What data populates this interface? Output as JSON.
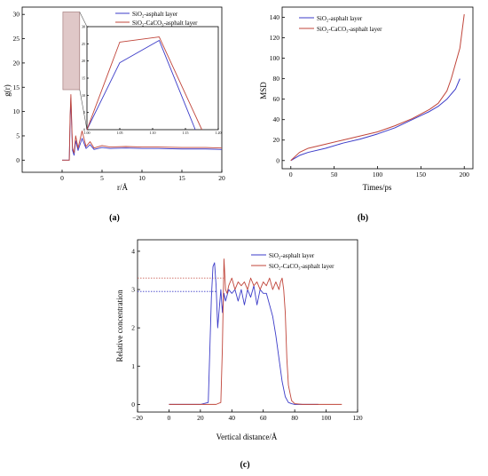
{
  "chart_data": [
    {
      "panel_label": "(a)",
      "type": "line",
      "ylabel": "g(r)",
      "xlabel": "r/Å",
      "xlim": [
        -5,
        20
      ],
      "ylim": [
        -2.5,
        31.5
      ],
      "xticks": [
        "0",
        "5",
        "10",
        "15",
        "20"
      ],
      "yticks": [
        "0",
        "5",
        "10",
        "15",
        "20",
        "25",
        "30"
      ],
      "colors": {
        "series1": "#3b3bc8",
        "series2": "#c0453a"
      },
      "series": [
        {
          "name": "SiO₂-asphalt layer",
          "x": [
            0,
            0.9,
            1.0,
            1.1,
            1.2,
            1.3,
            1.5,
            1.7,
            2.0,
            2.5,
            3,
            3.5,
            4,
            5,
            6,
            8,
            10,
            12,
            15,
            18,
            20
          ],
          "y": [
            0,
            0,
            8.0,
            12.8,
            7.0,
            2.0,
            1.0,
            4.0,
            2.0,
            4.5,
            2.4,
            3.2,
            2.2,
            2.6,
            2.4,
            2.5,
            2.4,
            2.4,
            2.3,
            2.3,
            2.2
          ]
        },
        {
          "name": "SiO₂-CaCO₃-asphalt layer",
          "x": [
            0,
            0.9,
            1.0,
            1.1,
            1.2,
            1.3,
            1.5,
            1.7,
            2.0,
            2.5,
            3,
            3.5,
            4,
            5,
            6,
            8,
            10,
            12,
            15,
            18,
            20
          ],
          "y": [
            0,
            0,
            9.0,
            13.5,
            8.0,
            2.5,
            1.5,
            5.0,
            2.5,
            6.0,
            2.8,
            3.8,
            2.5,
            3.0,
            2.7,
            2.8,
            2.7,
            2.7,
            2.6,
            2.6,
            2.5
          ]
        }
      ],
      "inset": {
        "xlim": [
          1.0,
          1.18
        ],
        "ylim": [
          0,
          30
        ],
        "xticks": [
          "1.00",
          "1.05",
          "1.10",
          "1.15",
          "1.20"
        ],
        "yticks": [
          "0",
          "5",
          "10",
          "15",
          "20",
          "25",
          "30"
        ],
        "series": [
          {
            "name": "SiO₂-asphalt layer",
            "x": [
              1.0,
              1.05,
              1.11,
              1.165
            ],
            "y": [
              0,
              19.5,
              26.0,
              0
            ]
          },
          {
            "name": "SiO₂-CaCO₃-asphalt layer",
            "x": [
              1.0,
              1.05,
              1.11,
              1.175
            ],
            "y": [
              0,
              25.5,
              27.0,
              0
            ]
          }
        ]
      }
    },
    {
      "panel_label": "(b)",
      "type": "line",
      "ylabel": "MSD",
      "xlabel": "Times/ps",
      "xlim": [
        -10,
        210
      ],
      "ylim": [
        -8,
        150
      ],
      "xticks": [
        "0",
        "50",
        "100",
        "150",
        "200"
      ],
      "yticks": [
        "0",
        "20",
        "40",
        "60",
        "80",
        "100",
        "120",
        "140"
      ],
      "series": [
        {
          "name": "SiO₂-asphalt layer",
          "x": [
            0,
            10,
            20,
            40,
            60,
            80,
            100,
            120,
            140,
            160,
            170,
            180,
            190,
            195
          ],
          "y": [
            0,
            5,
            8,
            12,
            17,
            21,
            26,
            32,
            40,
            48,
            53,
            60,
            70,
            80
          ]
        },
        {
          "name": "SiO₂-CaCO₃-asphalt layer",
          "x": [
            0,
            10,
            20,
            40,
            60,
            80,
            100,
            120,
            140,
            160,
            170,
            180,
            185,
            190,
            195,
            200
          ],
          "y": [
            0,
            8,
            12,
            16,
            20,
            24,
            28,
            34,
            41,
            50,
            56,
            68,
            80,
            95,
            110,
            143
          ]
        }
      ]
    },
    {
      "panel_label": "(c)",
      "type": "line",
      "ylabel": "Relative concentration",
      "xlabel": "Vertical distance/Å",
      "xlim": [
        -20,
        120
      ],
      "ylim": [
        -0.2,
        4.3
      ],
      "xticks": [
        "−20",
        "0",
        "20",
        "40",
        "60",
        "80",
        "100",
        "120"
      ],
      "yticks": [
        "0",
        "1",
        "2",
        "3",
        "4"
      ],
      "series": [
        {
          "name": "SiO₂-asphalt layer",
          "x": [
            0,
            20,
            25,
            27,
            28,
            29,
            30,
            31,
            32,
            33,
            34,
            35,
            36,
            38,
            40,
            42,
            44,
            46,
            48,
            50,
            52,
            54,
            56,
            58,
            60,
            62,
            64,
            66,
            68,
            70,
            72,
            74,
            76,
            78,
            80,
            85,
            90,
            95
          ],
          "y": [
            0,
            0,
            0.05,
            2.8,
            3.6,
            3.7,
            3.1,
            2.0,
            2.5,
            3.0,
            2.4,
            2.9,
            2.7,
            3.0,
            2.9,
            3.0,
            2.7,
            3.0,
            2.6,
            3.0,
            2.8,
            3.1,
            2.6,
            3.0,
            2.9,
            2.9,
            2.6,
            2.3,
            1.8,
            1.2,
            0.6,
            0.2,
            0.05,
            0.02,
            0,
            0,
            0,
            0
          ]
        },
        {
          "name": "SiO₂-CaCO₃-asphalt layer",
          "x": [
            0,
            20,
            30,
            33,
            34,
            35,
            36,
            37,
            38,
            40,
            42,
            44,
            46,
            48,
            50,
            52,
            54,
            56,
            58,
            60,
            62,
            64,
            66,
            68,
            70,
            71,
            72,
            73,
            74,
            75,
            76,
            78,
            80,
            85,
            90,
            100,
            110
          ],
          "y": [
            0,
            0,
            0,
            0.05,
            1.5,
            3.8,
            3.0,
            2.9,
            3.1,
            3.3,
            3.0,
            3.2,
            3.1,
            3.2,
            3.0,
            3.3,
            3.1,
            3.2,
            3.0,
            3.2,
            3.1,
            3.3,
            3.0,
            3.2,
            3.0,
            3.2,
            3.3,
            3.0,
            2.4,
            1.2,
            0.5,
            0.1,
            0.02,
            0,
            0,
            0,
            0
          ]
        }
      ],
      "reference_lines": [
        {
          "series": 0,
          "y": 2.95,
          "x_to": 30
        },
        {
          "series": 1,
          "y": 3.3,
          "x_to": 35
        }
      ]
    }
  ]
}
